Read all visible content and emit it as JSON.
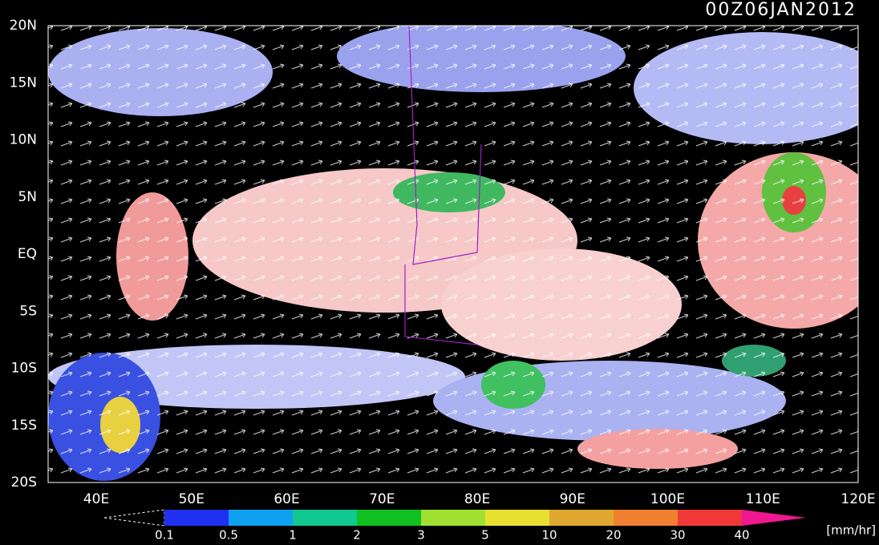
{
  "title": "00Z06JAN2012",
  "lat_labels": [
    "20N",
    "15N",
    "10N",
    "5N",
    "EQ",
    "5S",
    "10S",
    "15S",
    "20S"
  ],
  "lon_labels": [
    "40E",
    "50E",
    "60E",
    "70E",
    "80E",
    "90E",
    "100E",
    "110E",
    "120E"
  ],
  "colorbar": {
    "labels": [
      0.1,
      0.5,
      1,
      2,
      3,
      5,
      10,
      20,
      30,
      40
    ],
    "unit": "[mm/hr]"
  }
}
